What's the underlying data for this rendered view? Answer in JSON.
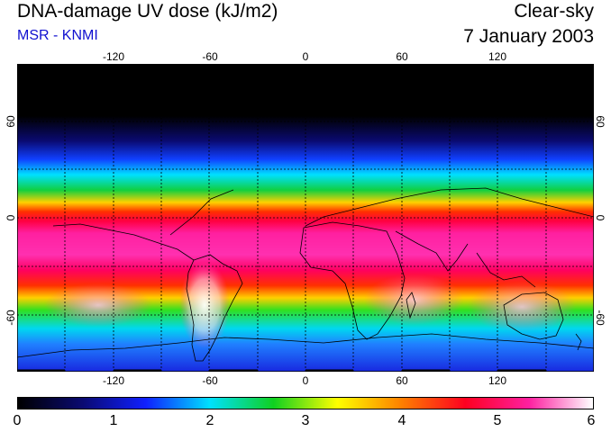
{
  "header": {
    "title": "DNA-damage UV dose (kJ/m2)",
    "source": "MSR - KNMI",
    "condition": "Clear-sky",
    "date": "7 January 2003"
  },
  "map": {
    "longitude_ticks": [
      "-120",
      "-60",
      "0",
      "60",
      "120"
    ],
    "latitude_ticks": [
      "60",
      "0",
      "-60"
    ],
    "colorbar_ticks": [
      "0",
      "1",
      "2",
      "3",
      "4",
      "5",
      "6"
    ]
  },
  "colors": {
    "subtitle": "#1010d0",
    "scale": [
      "#000000",
      "#0a0a70",
      "#1020ff",
      "#00e0ff",
      "#10d020",
      "#ffff00",
      "#ff8000",
      "#ff0020",
      "#ff20a0",
      "#ffffff"
    ]
  }
}
